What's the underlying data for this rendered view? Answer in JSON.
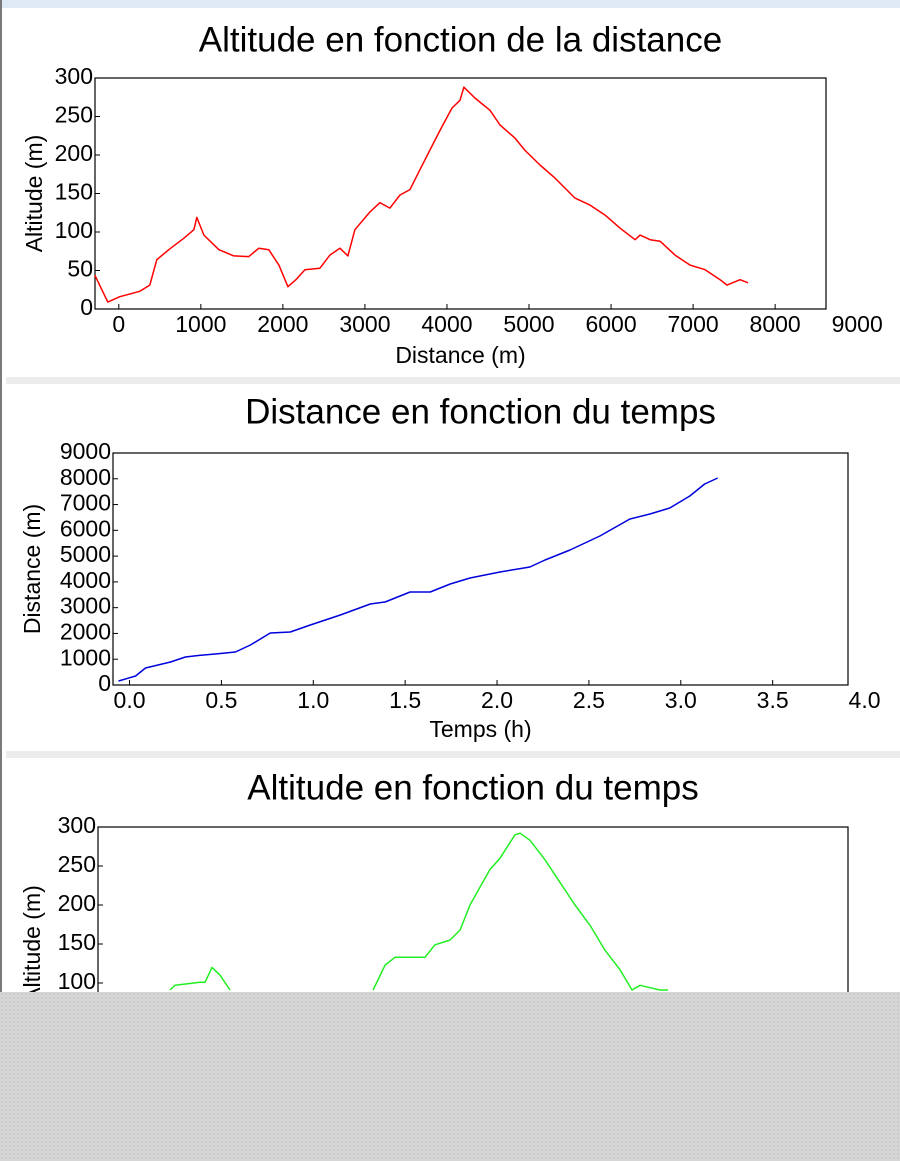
{
  "chart_data": [
    {
      "type": "line",
      "title": "Altitude en fonction de la distance",
      "xlabel": "Distance (m)",
      "ylabel": "Altitude (m)",
      "xlim": [
        -290,
        8620
      ],
      "ylim": [
        0,
        300
      ],
      "xticks": [
        0,
        1000,
        2000,
        3000,
        4000,
        5000,
        6000,
        7000,
        8000,
        9000
      ],
      "yticks": [
        0,
        50,
        100,
        150,
        200,
        250,
        300
      ],
      "x": [
        -293,
        -134,
        12,
        256,
        378,
        463,
        610,
        793,
        915,
        951,
        1037,
        1220,
        1402,
        1585,
        1707,
        1829,
        1951,
        2061,
        2159,
        2268,
        2451,
        2573,
        2695,
        2793,
        2878,
        3061,
        3183,
        3305,
        3427,
        3549,
        3671,
        3915,
        4061,
        4159,
        4207,
        4341,
        4524,
        4646,
        4829,
        4951,
        5134,
        5317,
        5561,
        5744,
        5927,
        6110,
        6293,
        6354,
        6476,
        6598,
        6780,
        6963,
        7146,
        7329,
        7415,
        7573,
        7671
      ],
      "series": [
        {
          "color": "#ff0000",
          "values": [
            44,
            9,
            16,
            23,
            31,
            64,
            77,
            92,
            103,
            119,
            96,
            77,
            69,
            68,
            79,
            77,
            57,
            29,
            38,
            51,
            53,
            70,
            79,
            69,
            103,
            126,
            138,
            131,
            148,
            155,
            181,
            232,
            261,
            271,
            288,
            274,
            258,
            239,
            222,
            206,
            187,
            170,
            144,
            135,
            122,
            105,
            90,
            96,
            90,
            88,
            70,
            57,
            51,
            38,
            31,
            38,
            34
          ]
        }
      ]
    },
    {
      "type": "line",
      "title": "Distance en fonction du temps",
      "xlabel": "Temps (h)",
      "ylabel": "Distance (m)",
      "xlim": [
        -0.09,
        3.91
      ],
      "ylim": [
        0,
        9000
      ],
      "xticks": [
        {
          "value": 0,
          "label": "0.0"
        },
        0.5,
        {
          "value": 1,
          "label": "1.0"
        },
        1.5,
        {
          "value": 2,
          "label": "2.0"
        },
        2.5,
        {
          "value": 3,
          "label": "3.0"
        },
        3.5,
        {
          "value": 4,
          "label": "4.0"
        }
      ],
      "yticks": [
        0,
        1000,
        2000,
        3000,
        4000,
        5000,
        6000,
        7000,
        8000,
        9000
      ],
      "x": [
        -0.06,
        0.033,
        0.087,
        0.223,
        0.304,
        0.38,
        0.467,
        0.576,
        0.658,
        0.766,
        0.875,
        0.984,
        1.147,
        1.31,
        1.391,
        1.527,
        1.636,
        1.745,
        1.853,
        2.016,
        2.179,
        2.261,
        2.397,
        2.56,
        2.723,
        2.832,
        2.94,
        3.049,
        3.13,
        3.201
      ],
      "series": [
        {
          "color": "#0000dd",
          "values": [
            155,
            349,
            659,
            893,
            1086,
            1150,
            1202,
            1280,
            1552,
            2017,
            2056,
            2327,
            2715,
            3142,
            3220,
            3608,
            3608,
            3918,
            4151,
            4384,
            4578,
            4849,
            5237,
            5780,
            6440,
            6634,
            6867,
            7332,
            7798,
            8030
          ]
        }
      ]
    },
    {
      "type": "line",
      "title": "Altitude en fonction du temps",
      "ylabel": "Altitude (m)",
      "xlim": [
        -0.09,
        3.91
      ],
      "ylim": [
        0,
        300
      ],
      "yticks": [
        100,
        150,
        200,
        250,
        300
      ],
      "x": [
        0.294,
        0.321,
        0.454,
        0.481,
        0.518,
        0.561,
        0.614,
        null,
        1.377,
        1.441,
        1.494,
        1.654,
        1.707,
        1.787,
        1.841,
        1.894,
        1.999,
        2.054,
        2.134,
        2.161,
        2.214,
        2.294,
        2.374,
        2.454,
        2.534,
        2.614,
        2.694,
        2.758,
        2.801,
        2.854,
        2.907,
        2.95
      ],
      "series": [
        {
          "color": "#22ee22",
          "values": [
            91,
            97,
            101,
            101,
            120,
            110,
            91,
            null,
            91,
            123,
            133,
            133,
            149,
            155,
            168,
            200,
            245,
            260,
            290,
            292,
            283,
            258,
            229,
            200,
            174,
            142,
            117,
            91,
            97,
            94,
            91,
            91
          ]
        }
      ]
    }
  ]
}
